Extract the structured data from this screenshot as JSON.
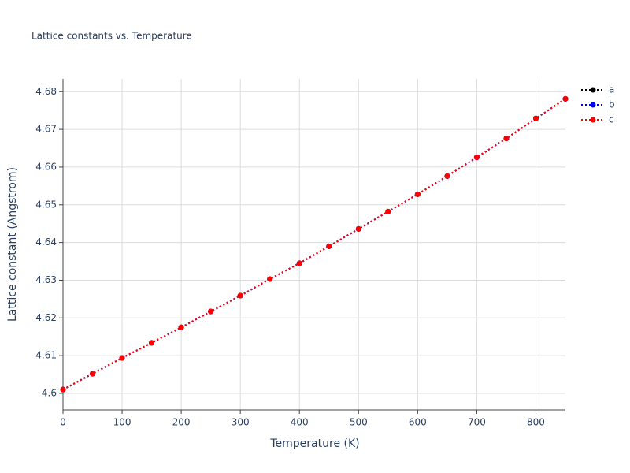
{
  "chart_data": {
    "type": "line",
    "title": "Lattice constants vs. Temperature",
    "x_label": "Temperature (K)",
    "y_label": "Lattice constant (Angstrom)",
    "x": [
      0,
      50,
      100,
      150,
      200,
      250,
      300,
      350,
      400,
      450,
      500,
      550,
      600,
      650,
      700,
      750,
      800,
      850
    ],
    "series": [
      {
        "name": "a",
        "color": "#000000",
        "values": [
          4.601,
          4.6052,
          4.6094,
          4.6134,
          4.6175,
          4.6217,
          4.6259,
          4.6303,
          4.6345,
          4.639,
          4.6436,
          4.6482,
          4.6528,
          4.6576,
          4.6626,
          4.6676,
          4.6729,
          4.6781
        ]
      },
      {
        "name": "b",
        "color": "#0000ff",
        "values": [
          4.601,
          4.6052,
          4.6094,
          4.6134,
          4.6175,
          4.6217,
          4.6259,
          4.6303,
          4.6345,
          4.639,
          4.6436,
          4.6482,
          4.6528,
          4.6576,
          4.6626,
          4.6676,
          4.6729,
          4.6781
        ]
      },
      {
        "name": "c",
        "color": "#ff0000",
        "values": [
          4.601,
          4.6052,
          4.6094,
          4.6134,
          4.6175,
          4.6217,
          4.6259,
          4.6303,
          4.6345,
          4.639,
          4.6436,
          4.6482,
          4.6528,
          4.6576,
          4.6626,
          4.6676,
          4.6729,
          4.6781
        ]
      }
    ],
    "xlim": [
      0,
      850
    ],
    "xticks": [
      0,
      100,
      200,
      300,
      400,
      500,
      600,
      700,
      800
    ],
    "ylim": [
      4.5956,
      4.6834
    ],
    "yticks": [
      4.6,
      4.61,
      4.62,
      4.63,
      4.64,
      4.65,
      4.66,
      4.67,
      4.68
    ],
    "grid": true,
    "line_style": "dotted",
    "legend": "right"
  }
}
